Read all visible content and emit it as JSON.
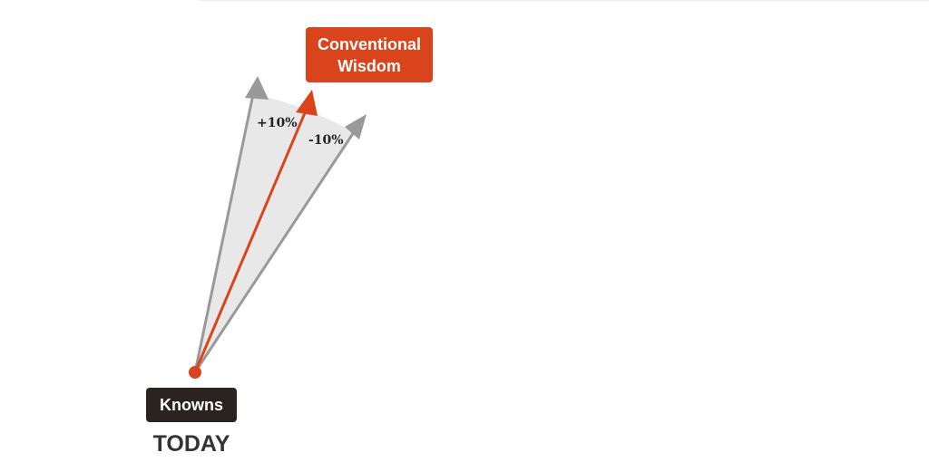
{
  "labels": {
    "conventional_line1": "Conventional",
    "conventional_line2": "Wisdom",
    "plus": "+10%",
    "minus": "-10%",
    "knowns": "Knowns",
    "today": "TODAY"
  },
  "colors": {
    "accent": "#d9441c",
    "gray_arrow": "#999999",
    "fan_fill": "#e8e8e8",
    "dark_label": "#2b2320"
  }
}
